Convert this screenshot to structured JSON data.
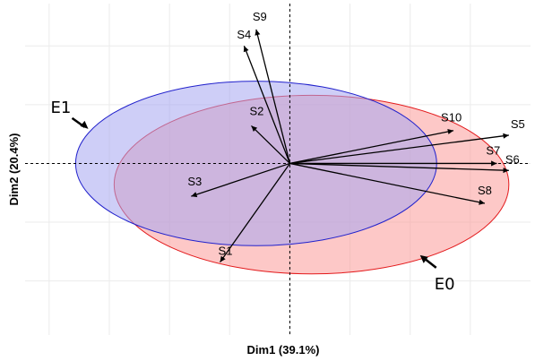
{
  "chart_data": {
    "type": "biplot",
    "title": "",
    "xlabel": "Dim1 (39.1%)",
    "ylabel": "Dim2 (20.4%)",
    "xlim": [
      -1.1,
      1.0
    ],
    "ylim": [
      -0.73,
      0.68
    ],
    "grid": true,
    "zero_lines": "dashed",
    "vectors": [
      {
        "name": "S1",
        "x": -0.29,
        "y": -0.42
      },
      {
        "name": "S2",
        "x": -0.16,
        "y": 0.16
      },
      {
        "name": "S3",
        "x": -0.41,
        "y": -0.14
      },
      {
        "name": "S4",
        "x": -0.19,
        "y": 0.5
      },
      {
        "name": "S5",
        "x": 0.91,
        "y": 0.12
      },
      {
        "name": "S6",
        "x": 0.91,
        "y": -0.03
      },
      {
        "name": "S7",
        "x": 0.86,
        "y": 0.0
      },
      {
        "name": "S8",
        "x": 0.81,
        "y": -0.17
      },
      {
        "name": "S9",
        "x": -0.14,
        "y": 0.57
      },
      {
        "name": "S10",
        "x": 0.68,
        "y": 0.14
      }
    ],
    "ellipses": [
      {
        "name": "E0",
        "cx": 0.09,
        "cy": -0.09,
        "rx": 0.82,
        "ry": 0.38,
        "fill": "#fb9a99",
        "stroke": "#e31a1c"
      },
      {
        "name": "E1",
        "cx": -0.14,
        "cy": 0.0,
        "rx": 0.75,
        "ry": 0.35,
        "fill": "#a6a6f0",
        "stroke": "#2222cc"
      }
    ],
    "ellipse_labels": [
      "E1",
      "E0"
    ]
  }
}
